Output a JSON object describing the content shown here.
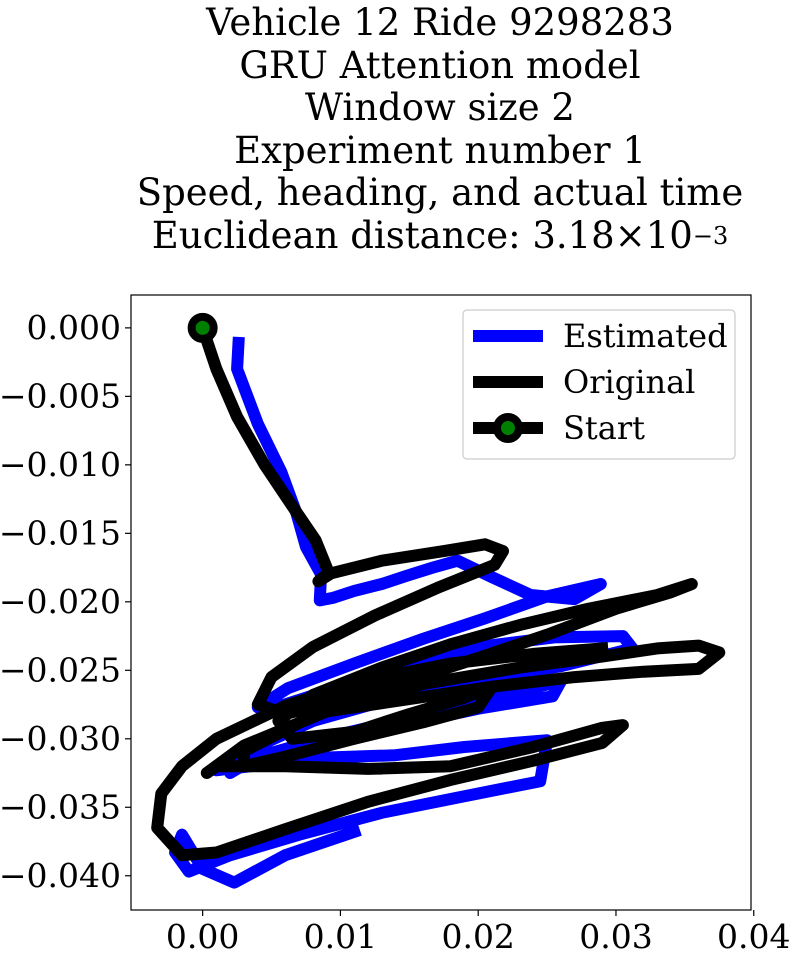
{
  "title": {
    "line1": "Vehicle 12 Ride 9298283",
    "line2": "GRU Attention model",
    "line3": "Window size 2",
    "line4": "Experiment number 1",
    "line5": "Speed, heading, and actual time",
    "line6_prefix": "Euclidean distance: 3.18",
    "line6_times": "×",
    "line6_base": "10",
    "line6_exp": "−3"
  },
  "colors": {
    "estimated": "#0000ff",
    "original": "#000000",
    "start_marker_fill": "#008000"
  },
  "chart_data": {
    "type": "line",
    "xlabel": "",
    "ylabel": "",
    "xlim": [
      -0.0052,
      0.0398
    ],
    "ylim": [
      -0.0425,
      0.0024
    ],
    "x_ticks": [
      0.0,
      0.01,
      0.02,
      0.03,
      0.04
    ],
    "x_tick_labels": [
      "0.00",
      "0.01",
      "0.02",
      "0.03",
      "0.04"
    ],
    "y_ticks": [
      0.0,
      -0.005,
      -0.01,
      -0.015,
      -0.02,
      -0.025,
      -0.03,
      -0.035,
      -0.04
    ],
    "y_tick_labels": [
      "0.000",
      "−0.005",
      "−0.010",
      "−0.015",
      "−0.020",
      "−0.025",
      "−0.030",
      "−0.035",
      "−0.040"
    ],
    "grid": false,
    "legend_position": "upper right",
    "series": [
      {
        "name": "Estimated",
        "color": "#0000ff",
        "x": [
          0.0026,
          0.0025,
          0.004,
          0.0057,
          0.0068,
          0.0075,
          0.0086,
          0.0085,
          0.0095,
          0.011,
          0.013,
          0.0148,
          0.0167,
          0.0185,
          0.021,
          0.0238,
          0.027,
          0.0289,
          0.025,
          0.0205,
          0.016,
          0.011,
          0.0062,
          0.004,
          0.005,
          0.01,
          0.015,
          0.02,
          0.0255,
          0.0305,
          0.0312,
          0.026,
          0.02,
          0.014,
          0.008,
          0.003,
          0.001,
          0.0035,
          0.008,
          0.014,
          0.02,
          0.0254,
          0.026,
          0.021,
          0.015,
          0.009,
          0.004,
          0.002,
          0.0022,
          0.004,
          0.008,
          0.014,
          0.019,
          0.025,
          0.0245,
          0.019,
          0.013,
          0.007,
          0.002,
          -0.001,
          -0.002,
          -0.0015,
          0.0,
          0.0023,
          0.006,
          0.011
        ],
        "y": [
          -0.0011,
          -0.003,
          -0.007,
          -0.0105,
          -0.0135,
          -0.016,
          -0.018,
          -0.0199,
          -0.0197,
          -0.0192,
          -0.0187,
          -0.0181,
          -0.0175,
          -0.017,
          -0.0182,
          -0.0195,
          -0.0198,
          -0.0187,
          -0.0196,
          -0.0212,
          -0.0227,
          -0.0245,
          -0.0263,
          -0.0277,
          -0.0278,
          -0.0262,
          -0.0247,
          -0.0233,
          -0.0226,
          -0.0225,
          -0.0234,
          -0.0247,
          -0.0257,
          -0.027,
          -0.0287,
          -0.031,
          -0.0323,
          -0.032,
          -0.0306,
          -0.0291,
          -0.0278,
          -0.0269,
          -0.0258,
          -0.027,
          -0.0285,
          -0.0299,
          -0.0313,
          -0.0325,
          -0.0318,
          -0.0316,
          -0.0314,
          -0.0312,
          -0.0306,
          -0.0301,
          -0.0331,
          -0.0342,
          -0.0354,
          -0.037,
          -0.0385,
          -0.0397,
          -0.0383,
          -0.037,
          -0.0395,
          -0.0405,
          -0.0385,
          -0.0368
        ]
      },
      {
        "name": "Original",
        "color": "#000000",
        "x": [
          0.0,
          0.001,
          0.0025,
          0.0045,
          0.0065,
          0.0082,
          0.0092,
          0.0084,
          0.009,
          0.013,
          0.0175,
          0.0205,
          0.0218,
          0.0212,
          0.017,
          0.0125,
          0.008,
          0.005,
          0.004,
          0.006,
          0.01,
          0.015,
          0.02,
          0.025,
          0.03,
          0.034,
          0.0355,
          0.033,
          0.028,
          0.023,
          0.018,
          0.013,
          0.008,
          0.0055,
          0.0065,
          0.011,
          0.015,
          0.019,
          0.021,
          0.02,
          0.016,
          0.011,
          0.006,
          0.003,
          0.003,
          0.009,
          0.016,
          0.023,
          0.029,
          0.033,
          0.036,
          0.0375,
          0.036,
          0.032,
          0.027,
          0.021,
          0.015,
          0.009,
          0.003,
          0.0003,
          0.001,
          0.006,
          0.012,
          0.018,
          0.024,
          0.029,
          0.0305,
          0.029,
          0.024,
          0.018,
          0.012,
          0.006,
          0.001,
          -0.0015,
          -0.0033,
          -0.003,
          -0.0015,
          0.001,
          0.006,
          0.012,
          0.018,
          0.024,
          0.029
        ],
        "y": [
          0.0,
          -0.003,
          -0.0065,
          -0.01,
          -0.013,
          -0.0155,
          -0.018,
          -0.0185,
          -0.018,
          -0.017,
          -0.0163,
          -0.0158,
          -0.0163,
          -0.0173,
          -0.019,
          -0.021,
          -0.0233,
          -0.0255,
          -0.0275,
          -0.0282,
          -0.0271,
          -0.0257,
          -0.0241,
          -0.0224,
          -0.0205,
          -0.0193,
          -0.0187,
          -0.0195,
          -0.0205,
          -0.0217,
          -0.0231,
          -0.0248,
          -0.0268,
          -0.0287,
          -0.03,
          -0.0295,
          -0.0282,
          -0.027,
          -0.0262,
          -0.0277,
          -0.0288,
          -0.03,
          -0.0313,
          -0.032,
          -0.0309,
          -0.0278,
          -0.026,
          -0.0248,
          -0.024,
          -0.0234,
          -0.0232,
          -0.0237,
          -0.0249,
          -0.0251,
          -0.0255,
          -0.0262,
          -0.0271,
          -0.028,
          -0.0305,
          -0.0325,
          -0.032,
          -0.032,
          -0.0322,
          -0.032,
          -0.0306,
          -0.0292,
          -0.029,
          -0.0303,
          -0.0316,
          -0.033,
          -0.0346,
          -0.0366,
          -0.0383,
          -0.0385,
          -0.0365,
          -0.034,
          -0.032,
          -0.03,
          -0.0276,
          -0.0257,
          -0.0245,
          -0.0238,
          -0.0234
        ]
      }
    ],
    "start_point": {
      "name": "Start",
      "x": 0.0,
      "y": 0.0
    }
  }
}
